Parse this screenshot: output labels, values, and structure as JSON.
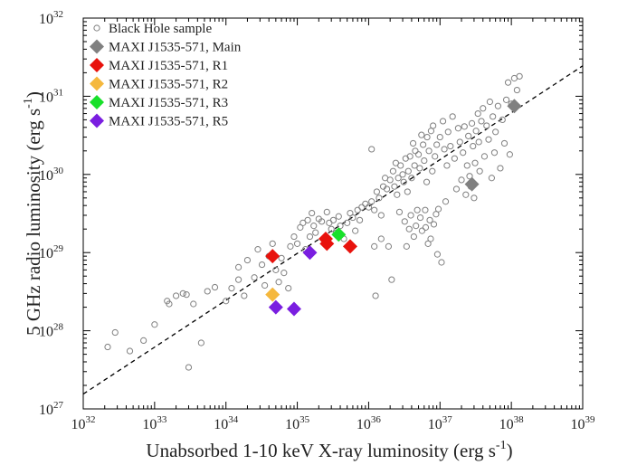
{
  "chart_data": {
    "type": "scatter",
    "xlabel": "Unabsorbed 1-10 keV X-ray luminosity (erg s",
    "xlabel_sup": "-1",
    "xlabel_close": ")",
    "ylabel": "5 GHz radio luminosity (erg s",
    "ylabel_sup": "-1",
    "ylabel_close": ")",
    "xscale": "log",
    "yscale": "log",
    "xlim": [
      1e+32,
      1e+39
    ],
    "ylim": [
      1e+27,
      1e+32
    ],
    "x_ticks": [
      {
        "base": "10",
        "exp": "32",
        "value": 1e+32
      },
      {
        "base": "10",
        "exp": "33",
        "value": 1e+33
      },
      {
        "base": "10",
        "exp": "34",
        "value": 1e+34
      },
      {
        "base": "10",
        "exp": "35",
        "value": 1e+35
      },
      {
        "base": "10",
        "exp": "36",
        "value": 1e+36
      },
      {
        "base": "10",
        "exp": "37",
        "value": 1e+37
      },
      {
        "base": "10",
        "exp": "38",
        "value": 1e+38
      },
      {
        "base": "10",
        "exp": "39",
        "value": 1e+39
      }
    ],
    "y_ticks": [
      {
        "base": "10",
        "exp": "27",
        "value": 1e+27
      },
      {
        "base": "10",
        "exp": "28",
        "value": 1e+28
      },
      {
        "base": "10",
        "exp": "29",
        "value": 1e+29
      },
      {
        "base": "10",
        "exp": "30",
        "value": 1e+30
      },
      {
        "base": "10",
        "exp": "31",
        "value": 1e+31
      },
      {
        "base": "10",
        "exp": "32",
        "value": 1e+32
      }
    ],
    "legend_position": "top-left",
    "grid": false,
    "fit_line": {
      "style": "dashed",
      "color": "#000000",
      "points": [
        [
          1e+32,
          1.55e+27
        ],
        [
          1e+39,
          2.45e+31
        ]
      ]
    },
    "series": [
      {
        "name": "Black Hole sample",
        "marker": "open-circle",
        "color": "#808080",
        "points": [
          [
            2.2e+32,
            6.2e+27
          ],
          [
            2.8e+32,
            9.5e+27
          ],
          [
            4.5e+32,
            5.5e+27
          ],
          [
            7e+32,
            7.5e+27
          ],
          [
            1e+33,
            1.2e+28
          ],
          [
            1.5e+33,
            2.4e+28
          ],
          [
            1.6e+33,
            2.2e+28
          ],
          [
            2e+33,
            2.8e+28
          ],
          [
            2.5e+33,
            3e+28
          ],
          [
            2.8e+33,
            2.9e+28
          ],
          [
            3e+33,
            3.4e+27
          ],
          [
            3.5e+33,
            2.2e+28
          ],
          [
            4.5e+33,
            7e+27
          ],
          [
            5.5e+33,
            3.2e+28
          ],
          [
            7e+33,
            3.6e+28
          ],
          [
            1e+34,
            2.4e+28
          ],
          [
            1.2e+34,
            3.5e+28
          ],
          [
            1.5e+34,
            6.5e+28
          ],
          [
            1.5e+34,
            4.5e+28
          ],
          [
            1.8e+34,
            2.8e+28
          ],
          [
            2e+34,
            8e+28
          ],
          [
            2.5e+34,
            4.8e+28
          ],
          [
            2.8e+34,
            1.1e+29
          ],
          [
            3.2e+34,
            7e+28
          ],
          [
            3.5e+34,
            3.8e+28
          ],
          [
            4e+34,
            9e+28
          ],
          [
            4.5e+34,
            1.3e+29
          ],
          [
            5e+34,
            6e+28
          ],
          [
            5.5e+34,
            4.2e+28
          ],
          [
            6.5e+34,
            5.5e+28
          ],
          [
            7.5e+34,
            3.5e+28
          ],
          [
            6e+34,
            8.5e+28
          ],
          [
            8e+34,
            1.2e+29
          ],
          [
            9e+34,
            1.6e+29
          ],
          [
            1e+35,
            1.3e+29
          ],
          [
            1.1e+35,
            2.1e+29
          ],
          [
            1.2e+35,
            2.4e+29
          ],
          [
            1.3e+35,
            1.1e+29
          ],
          [
            1.4e+35,
            2.6e+29
          ],
          [
            1.5e+35,
            1.6e+29
          ],
          [
            1.6e+35,
            3.2e+29
          ],
          [
            1.7e+35,
            2.2e+29
          ],
          [
            1.8e+35,
            1.8e+29
          ],
          [
            2e+35,
            2.7e+29
          ],
          [
            2.2e+35,
            2.5e+29
          ],
          [
            2.4e+35,
            1.5e+29
          ],
          [
            2.6e+35,
            3.3e+29
          ],
          [
            2.8e+35,
            2.4e+29
          ],
          [
            3e+35,
            2e+29
          ],
          [
            3.2e+35,
            2.6e+29
          ],
          [
            3.5e+35,
            1.8e+29
          ],
          [
            3.8e+35,
            2.9e+29
          ],
          [
            4e+35,
            2.2e+29
          ],
          [
            4.5e+35,
            1.5e+29
          ],
          [
            5e+35,
            2.4e+29
          ],
          [
            5.5e+35,
            3.2e+29
          ],
          [
            6e+35,
            2.8e+29
          ],
          [
            6.5e+35,
            1.9e+29
          ],
          [
            7e+35,
            3.5e+29
          ],
          [
            7.5e+35,
            2.6e+29
          ],
          [
            8e+35,
            3.8e+29
          ],
          [
            9e+35,
            4.2e+29
          ],
          [
            1e+36,
            3.8e+29
          ],
          [
            1.1e+36,
            2.1e+30
          ],
          [
            1.1e+36,
            4.5e+29
          ],
          [
            1.2e+36,
            3.5e+29
          ],
          [
            1.2e+36,
            1.2e+29
          ],
          [
            1.25e+36,
            2.8e+28
          ],
          [
            1.3e+36,
            6e+29
          ],
          [
            1.4e+36,
            5e+29
          ],
          [
            1.5e+36,
            3e+29
          ],
          [
            1.5e+36,
            1.5e+29
          ],
          [
            1.6e+36,
            7e+29
          ],
          [
            1.7e+36,
            9e+29
          ],
          [
            1.8e+36,
            6.5e+29
          ],
          [
            1.9e+36,
            1.2e+29
          ],
          [
            2e+36,
            8.5e+29
          ],
          [
            2.1e+36,
            4.5e+28
          ],
          [
            2.2e+36,
            1.1e+30
          ],
          [
            2.3e+36,
            7e+29
          ],
          [
            2.4e+36,
            1.4e+30
          ],
          [
            2.5e+36,
            5.5e+29
          ],
          [
            2.6e+36,
            9e+29
          ],
          [
            2.7e+36,
            3.3e+29
          ],
          [
            2.8e+36,
            1.3e+30
          ],
          [
            3e+36,
            1e+30
          ],
          [
            3.1e+36,
            8e+29
          ],
          [
            3.2e+36,
            2.5e+29
          ],
          [
            3.3e+36,
            1.6e+30
          ],
          [
            3.4e+36,
            1.2e+29
          ],
          [
            3.5e+36,
            6e+29
          ],
          [
            3.6e+36,
            1.1e+30
          ],
          [
            3.7e+36,
            2e+29
          ],
          [
            3.8e+36,
            1.7e+30
          ],
          [
            3.9e+36,
            3e+29
          ],
          [
            4e+36,
            9e+29
          ],
          [
            4.2e+36,
            2.5e+30
          ],
          [
            4.3e+36,
            1.6e+29
          ],
          [
            4.4e+36,
            1.3e+30
          ],
          [
            4.5e+36,
            2e+30
          ],
          [
            4.6e+36,
            2.2e+29
          ],
          [
            4.8e+36,
            3.5e+29
          ],
          [
            5e+36,
            1.8e+30
          ],
          [
            5.2e+36,
            1.2e+30
          ],
          [
            5.3e+36,
            2.8e+29
          ],
          [
            5.5e+36,
            3.2e+30
          ],
          [
            5.6e+36,
            1.9e+29
          ],
          [
            5.8e+36,
            2.4e+30
          ],
          [
            6e+36,
            1.5e+30
          ],
          [
            6.2e+36,
            3.5e+29
          ],
          [
            6.3e+36,
            2.1e+29
          ],
          [
            6.5e+36,
            8e+29
          ],
          [
            6.6e+36,
            3e+30
          ],
          [
            6.8e+36,
            1.3e+29
          ],
          [
            7e+36,
            2e+30
          ],
          [
            7.2e+36,
            2.6e+29
          ],
          [
            7.4e+36,
            1.5e+29
          ],
          [
            7.5e+36,
            3.6e+30
          ],
          [
            7.8e+36,
            1.1e+30
          ],
          [
            8e+36,
            4.2e+30
          ],
          [
            8.2e+36,
            2.3e+29
          ],
          [
            8.5e+36,
            1.7e+30
          ],
          [
            8.8e+36,
            3.1e+29
          ],
          [
            9e+36,
            2.4e+30
          ],
          [
            9.2e+36,
            9.5e+28
          ],
          [
            9.5e+36,
            3.6e+29
          ],
          [
            1e+37,
            3e+30
          ],
          [
            1.05e+37,
            7.5e+28
          ],
          [
            1.1e+37,
            4.8e+30
          ],
          [
            1.15e+37,
            2.1e+30
          ],
          [
            1.2e+37,
            4.5e+29
          ],
          [
            1.25e+37,
            1.3e+30
          ],
          [
            1.3e+37,
            3.5e+30
          ],
          [
            1.4e+37,
            2.3e+30
          ],
          [
            1.5e+37,
            5.5e+30
          ],
          [
            1.6e+37,
            1.6e+30
          ],
          [
            1.7e+37,
            6.5e+29
          ],
          [
            1.8e+37,
            3.9e+30
          ],
          [
            1.9e+37,
            2.6e+30
          ],
          [
            2e+37,
            8.5e+29
          ],
          [
            2.1e+37,
            1.9e+30
          ],
          [
            2.2e+37,
            4.1e+30
          ],
          [
            2.3e+37,
            5.5e+29
          ],
          [
            2.4e+37,
            1.3e+30
          ],
          [
            2.5e+37,
            3.1e+30
          ],
          [
            2.6e+37,
            9.5e+29
          ],
          [
            2.7e+37,
            7e+29
          ],
          [
            2.8e+37,
            4.5e+30
          ],
          [
            2.9e+37,
            2.3e+30
          ],
          [
            3e+37,
            5e+29
          ],
          [
            3.1e+37,
            1.4e+30
          ],
          [
            3.2e+37,
            3.6e+30
          ],
          [
            3.4e+37,
            6e+30
          ],
          [
            3.5e+37,
            2.6e+30
          ],
          [
            3.6e+37,
            1.1e+30
          ],
          [
            3.8e+37,
            4.8e+30
          ],
          [
            4e+37,
            7e+30
          ],
          [
            4.2e+37,
            1.7e+30
          ],
          [
            4.5e+37,
            4.2e+30
          ],
          [
            4.8e+37,
            2.8e+30
          ],
          [
            5e+37,
            8.5e+30
          ],
          [
            5.3e+37,
            9e+29
          ],
          [
            5.5e+37,
            5.5e+30
          ],
          [
            5.8e+37,
            1.9e+30
          ],
          [
            6e+37,
            3.5e+30
          ],
          [
            6.5e+37,
            7.5e+30
          ],
          [
            7e+37,
            1.2e+30
          ],
          [
            7.5e+37,
            5e+30
          ],
          [
            8e+37,
            2.5e+30
          ],
          [
            8.5e+37,
            9e+30
          ],
          [
            9e+37,
            1.5e+31
          ],
          [
            9.5e+37,
            1.8e+30
          ],
          [
            1e+38,
            8e+30
          ],
          [
            1.1e+38,
            1.7e+31
          ],
          [
            1.2e+38,
            1.2e+31
          ],
          [
            1.3e+38,
            1.8e+31
          ]
        ]
      },
      {
        "name": "MAXI J1535-571, Main",
        "marker": "diamond",
        "color": "#808080",
        "points": [
          [
            1.1e+38,
            7.5e+30
          ],
          [
            2.8e+37,
            7.5e+29
          ]
        ]
      },
      {
        "name": "MAXI J1535-571, R1",
        "marker": "diamond",
        "color": "#e8120c",
        "points": [
          [
            4.5e+34,
            9e+28
          ],
          [
            2.5e+35,
            1.5e+29
          ],
          [
            2.6e+35,
            1.3e+29
          ],
          [
            5.5e+35,
            1.2e+29
          ]
        ]
      },
      {
        "name": "MAXI J1535-571, R2",
        "marker": "diamond",
        "color": "#f5b83d",
        "points": [
          [
            4.5e+34,
            2.9e+28
          ]
        ]
      },
      {
        "name": "MAXI J1535-571, R3",
        "marker": "diamond",
        "color": "#18e02a",
        "points": [
          [
            3.8e+35,
            1.7e+29
          ]
        ]
      },
      {
        "name": "MAXI J1535-571, R5",
        "marker": "diamond",
        "color": "#7a1ee0",
        "points": [
          [
            5e+34,
            2e+28
          ],
          [
            9e+34,
            1.9e+28
          ],
          [
            1.5e+35,
            1e+29
          ]
        ]
      }
    ]
  }
}
